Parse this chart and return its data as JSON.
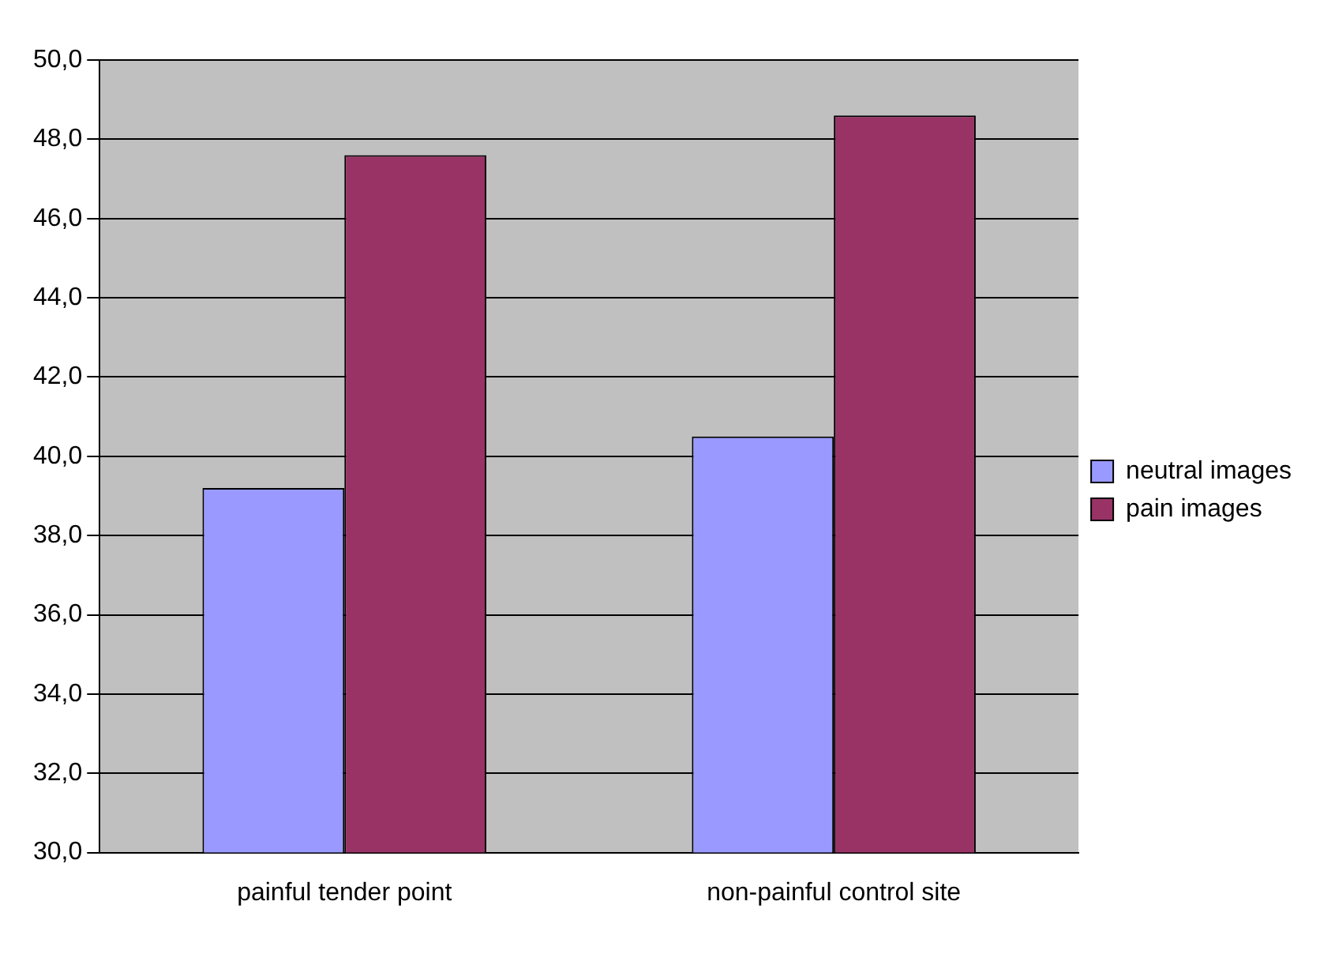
{
  "chart_data": {
    "type": "bar",
    "categories": [
      "painful tender point",
      "non-painful control site"
    ],
    "series": [
      {
        "name": "neutral images",
        "color": "#9999ff",
        "values": [
          39.2,
          40.5
        ]
      },
      {
        "name": "pain images",
        "color": "#993366",
        "values": [
          47.6,
          48.6
        ]
      }
    ],
    "ylim": [
      30,
      50
    ],
    "yticks": [
      {
        "value": 30,
        "label": "30,0"
      },
      {
        "value": 32,
        "label": "32,0"
      },
      {
        "value": 34,
        "label": "34,0"
      },
      {
        "value": 36,
        "label": "36,0"
      },
      {
        "value": 38,
        "label": "38,0"
      },
      {
        "value": 40,
        "label": "40,0"
      },
      {
        "value": 42,
        "label": "42,0"
      },
      {
        "value": 44,
        "label": "44,0"
      },
      {
        "value": 46,
        "label": "46,0"
      },
      {
        "value": 48,
        "label": "48,0"
      },
      {
        "value": 50,
        "label": "50,0"
      }
    ],
    "grid": "y",
    "legend": "right"
  }
}
